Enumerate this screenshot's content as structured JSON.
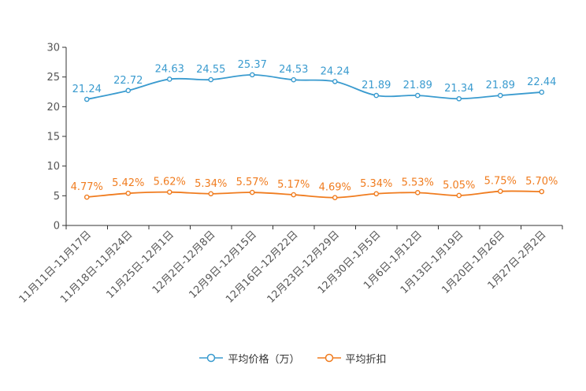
{
  "colors": {
    "series1": "#3a9bcf",
    "series2": "#f07c1f",
    "axis": "#333333",
    "tick": "#555555"
  },
  "chart_data": {
    "type": "line",
    "title": "",
    "xlabel": "",
    "ylabel": "",
    "ylim": [
      0,
      30
    ],
    "yticks": [
      0,
      5,
      10,
      15,
      20,
      25,
      30
    ],
    "grid": false,
    "legend_position": "bottom-center",
    "categories": [
      "11月11日-11月17日",
      "11月18日-11月24日",
      "11月25日-12月1日",
      "12月2日-12月8日",
      "12月9日-12月15日",
      "12月16日-12月22日",
      "12月23日-12月29日",
      "12月30日-1月5日",
      "1月6日-1月12日",
      "1月13日-1月19日",
      "1月20日-1月26日",
      "1月27日-2月2日"
    ],
    "series": [
      {
        "name": "平均价格（万）",
        "values": [
          21.24,
          22.72,
          24.63,
          24.55,
          25.37,
          24.53,
          24.24,
          21.89,
          21.89,
          21.34,
          21.89,
          22.44
        ],
        "labels": [
          "21.24",
          "22.72",
          "24.63",
          "24.55",
          "25.37",
          "24.53",
          "24.24",
          "21.89",
          "21.89",
          "21.34",
          "21.89",
          "22.44"
        ]
      },
      {
        "name": "平均折扣",
        "values": [
          4.77,
          5.42,
          5.62,
          5.34,
          5.57,
          5.17,
          4.69,
          5.34,
          5.53,
          5.05,
          5.75,
          5.7
        ],
        "labels": [
          "4.77%",
          "5.42%",
          "5.62%",
          "5.34%",
          "5.57%",
          "5.17%",
          "4.69%",
          "5.34%",
          "5.53%",
          "5.05%",
          "5.75%",
          "5.70%"
        ]
      }
    ]
  }
}
